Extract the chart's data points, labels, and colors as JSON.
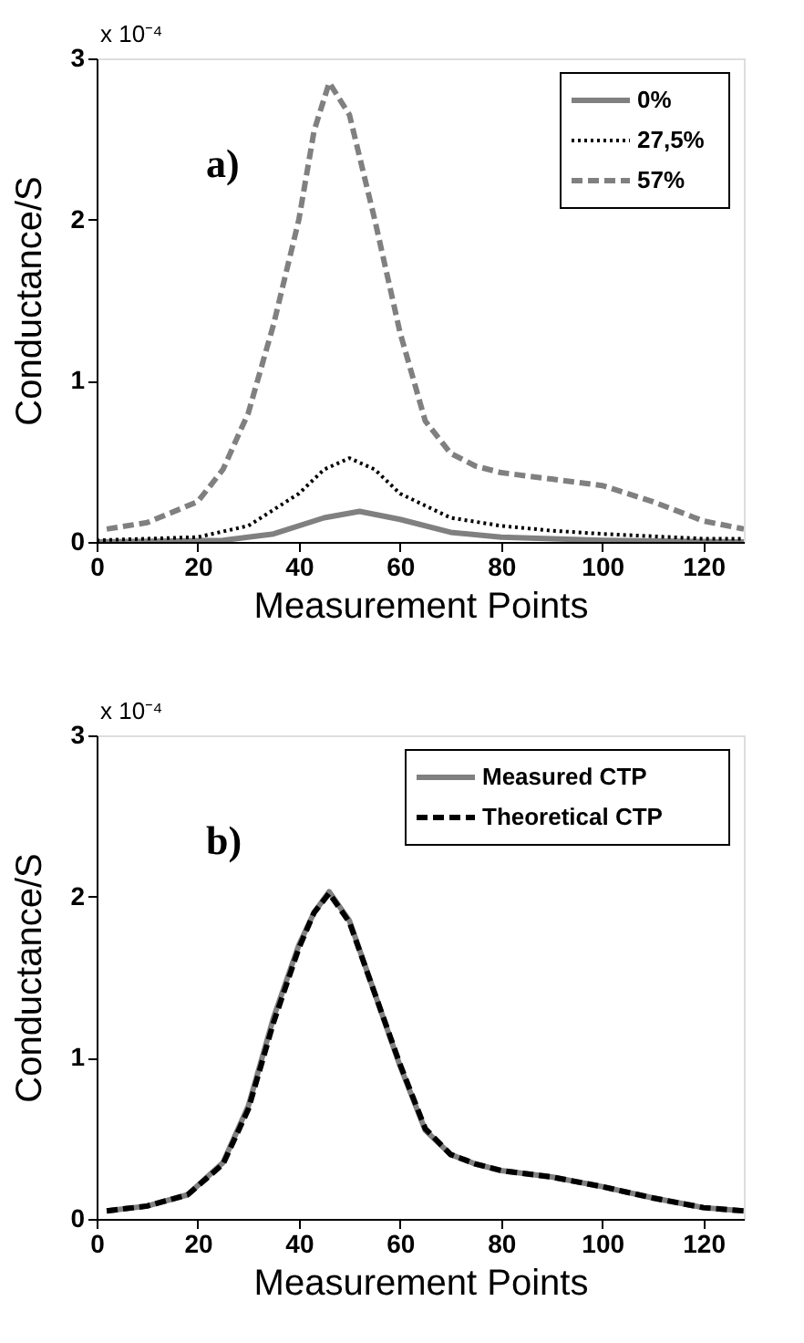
{
  "chart_data": [
    {
      "type": "line",
      "xlabel": "Measurement Points",
      "ylabel": "Conductance/S",
      "xlim": [
        0,
        128
      ],
      "ylim": [
        0,
        3
      ],
      "xticks": [
        0,
        20,
        40,
        60,
        80,
        100,
        120
      ],
      "yticks": [
        0,
        1,
        2,
        3
      ],
      "grid": false,
      "legend": "top right",
      "annotations": [
        "x 10⁻⁴",
        "a)"
      ],
      "series": [
        {
          "name": "0%",
          "color": "#808080",
          "line_style": "solid",
          "x": [
            0,
            25,
            35,
            45,
            52,
            60,
            70,
            80,
            100,
            128
          ],
          "values": [
            0,
            0.01,
            0.05,
            0.15,
            0.19,
            0.14,
            0.06,
            0.03,
            0.01,
            0
          ]
        },
        {
          "name": "27,5%",
          "color": "#000000",
          "line_style": "dotted",
          "x": [
            0,
            20,
            30,
            40,
            45,
            50,
            55,
            60,
            70,
            80,
            90,
            100,
            120,
            128
          ],
          "values": [
            0.01,
            0.03,
            0.1,
            0.3,
            0.45,
            0.52,
            0.45,
            0.3,
            0.15,
            0.1,
            0.07,
            0.05,
            0.02,
            0.02
          ]
        },
        {
          "name": "57%",
          "color": "#808080",
          "line_style": "dashed",
          "x": [
            2,
            10,
            20,
            25,
            30,
            35,
            40,
            43,
            46,
            50,
            55,
            60,
            65,
            70,
            75,
            80,
            90,
            100,
            110,
            120,
            128
          ],
          "values": [
            0.08,
            0.12,
            0.25,
            0.45,
            0.8,
            1.35,
            2.0,
            2.55,
            2.85,
            2.65,
            2.0,
            1.3,
            0.75,
            0.55,
            0.47,
            0.43,
            0.39,
            0.35,
            0.25,
            0.13,
            0.08
          ]
        }
      ]
    },
    {
      "type": "line",
      "xlabel": "Measurement Points",
      "ylabel": "Conductance/S",
      "xlim": [
        0,
        128
      ],
      "ylim": [
        0,
        3
      ],
      "xticks": [
        0,
        20,
        40,
        60,
        80,
        100,
        120
      ],
      "yticks": [
        0,
        1,
        2,
        3
      ],
      "grid": false,
      "legend": "top right",
      "annotations": [
        "x 10⁻⁴",
        "b)"
      ],
      "series": [
        {
          "name": "Measured CTP",
          "color": "#808080",
          "line_style": "solid",
          "x": [
            2,
            10,
            18,
            25,
            30,
            35,
            40,
            43,
            46,
            50,
            55,
            60,
            65,
            70,
            75,
            80,
            90,
            100,
            110,
            120,
            128
          ],
          "values": [
            0.05,
            0.08,
            0.15,
            0.35,
            0.7,
            1.25,
            1.7,
            1.9,
            2.03,
            1.85,
            1.4,
            0.95,
            0.55,
            0.4,
            0.34,
            0.3,
            0.26,
            0.2,
            0.13,
            0.07,
            0.05
          ]
        },
        {
          "name": "Theoretical CTP",
          "color": "#000000",
          "line_style": "dashed",
          "x": [
            2,
            10,
            18,
            25,
            30,
            35,
            40,
            43,
            46,
            50,
            55,
            60,
            65,
            70,
            75,
            80,
            90,
            100,
            110,
            120,
            128
          ],
          "values": [
            0.05,
            0.08,
            0.15,
            0.34,
            0.68,
            1.22,
            1.68,
            1.9,
            2.02,
            1.84,
            1.4,
            0.96,
            0.56,
            0.4,
            0.34,
            0.3,
            0.26,
            0.2,
            0.13,
            0.07,
            0.05
          ]
        }
      ]
    }
  ]
}
